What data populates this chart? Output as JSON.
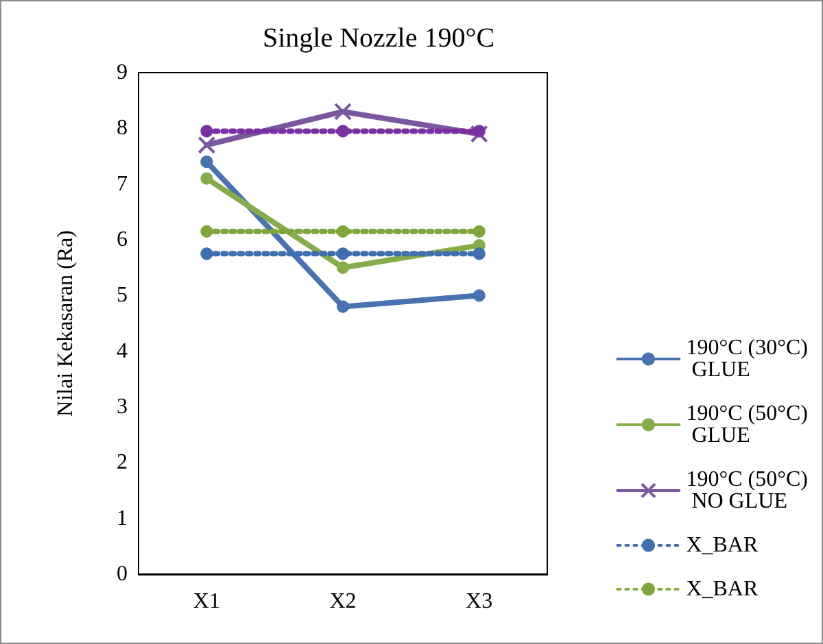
{
  "chart_data": {
    "type": "line",
    "title": "Single Nozzle 190°C",
    "ylabel": "Nilai Kekasaran (Ra)",
    "categories": [
      "X1",
      "X2",
      "X3"
    ],
    "ylim": [
      0,
      9
    ],
    "yticks": [
      0,
      1,
      2,
      3,
      4,
      5,
      6,
      7,
      8,
      9
    ],
    "grid": false,
    "legend": "right",
    "series": [
      {
        "name": "190°C (30°C) GLUE",
        "color": "#4a72b0",
        "values": [
          7.4,
          4.8,
          5.0
        ],
        "marker": "circle",
        "line_style": "solid"
      },
      {
        "name": "190°C (50°C) GLUE",
        "color": "#86ad4c",
        "values": [
          7.1,
          5.5,
          5.9
        ],
        "marker": "circle",
        "line_style": "solid"
      },
      {
        "name": "190°C (50°C) NO GLUE",
        "color": "#7a58a0",
        "values": [
          7.7,
          8.3,
          7.9
        ],
        "marker": "cross",
        "line_style": "solid"
      },
      {
        "name": "X_BAR",
        "color": "#3f6fae",
        "values": [
          5.75,
          5.75,
          5.75
        ],
        "marker": "circle",
        "line_style": "dotted"
      },
      {
        "name": "X_BAR",
        "color": "#7ea63c",
        "values": [
          6.15,
          6.15,
          6.15
        ],
        "marker": "circle",
        "line_style": "dotted"
      },
      {
        "color": "#7a30a0",
        "values": [
          7.95,
          7.95,
          7.95
        ],
        "marker": "circle",
        "line_style": "dotted"
      }
    ]
  }
}
